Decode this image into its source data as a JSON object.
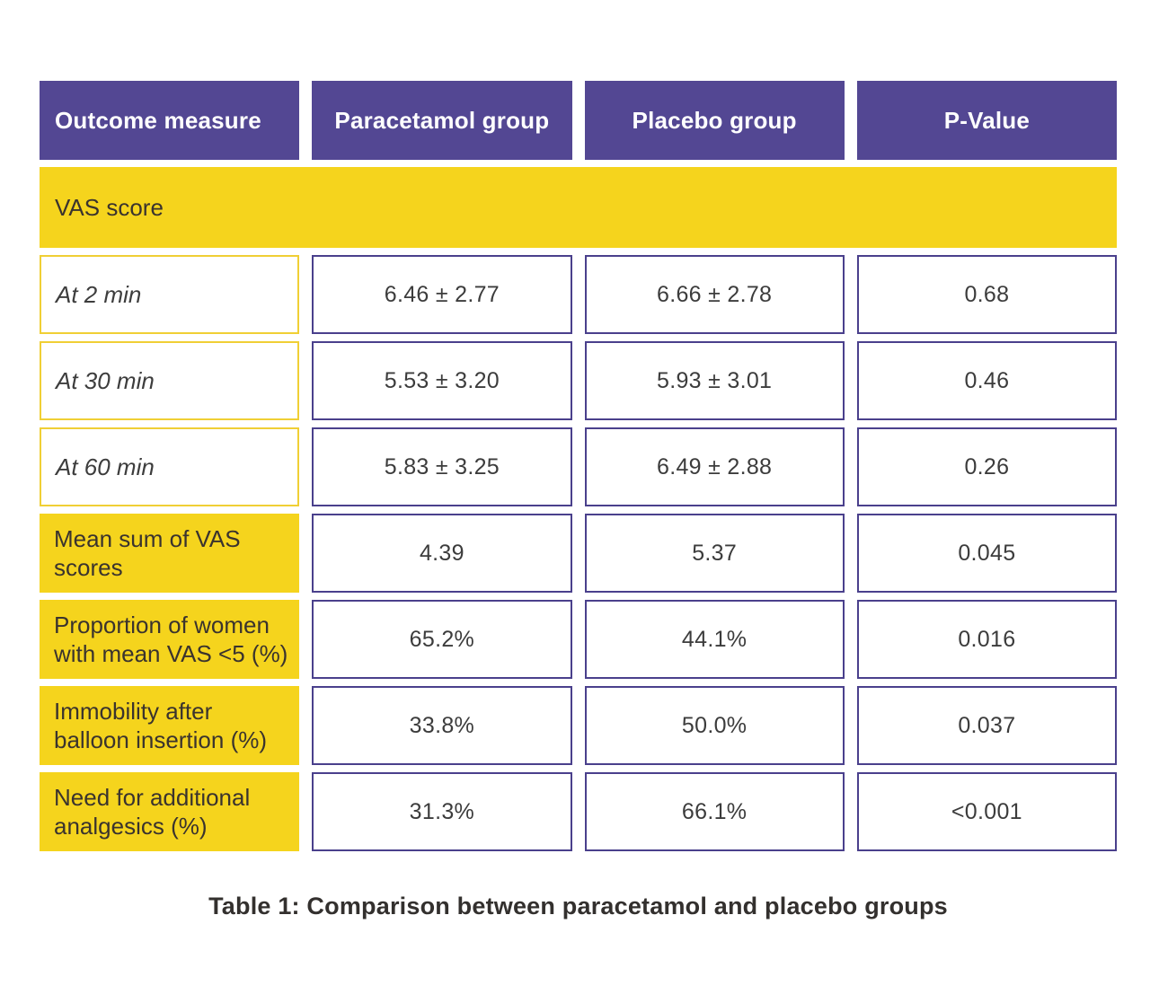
{
  "colors": {
    "header_bg": "#534793",
    "header_text": "#ffffff",
    "yellow": "#f5d41d",
    "yellow_border": "#f0cf35",
    "value_border": "#4a408c",
    "label_text": "#3a332e",
    "value_text": "#3c3c3c",
    "caption_text": "#33302e",
    "page_bg": "#ffffff"
  },
  "table": {
    "headers": {
      "outcome": "Outcome measure",
      "paracetamol": "Paracetamol group",
      "placebo": "Placebo group",
      "p_value": "P-Value"
    },
    "section_label": "VAS score",
    "rows": [
      {
        "label": "At 2 min",
        "paracetamol": "6.46 ± 2.77",
        "placebo": "6.66 ± 2.78",
        "p_value": "0.68"
      },
      {
        "label": "At 30 min",
        "paracetamol": "5.53 ± 3.20",
        "placebo": "5.93 ± 3.01",
        "p_value": "0.46"
      },
      {
        "label": "At 60 min",
        "paracetamol": "5.83 ± 3.25",
        "placebo": "6.49 ± 2.88",
        "p_value": "0.26"
      },
      {
        "label": "Mean sum of VAS scores",
        "paracetamol": "4.39",
        "placebo": "5.37",
        "p_value": "0.045"
      },
      {
        "label": "Proportion of women with mean VAS <5 (%)",
        "paracetamol": "65.2%",
        "placebo": "44.1%",
        "p_value": "0.016"
      },
      {
        "label": "Immobility after balloon insertion (%)",
        "paracetamol": "33.8%",
        "placebo": "50.0%",
        "p_value": "0.037"
      },
      {
        "label": "Need for additional analgesics (%)",
        "paracetamol": "31.3%",
        "placebo": "66.1%",
        "p_value": "<0.001"
      }
    ],
    "caption": "Table 1: Comparison between paracetamol and placebo groups"
  }
}
